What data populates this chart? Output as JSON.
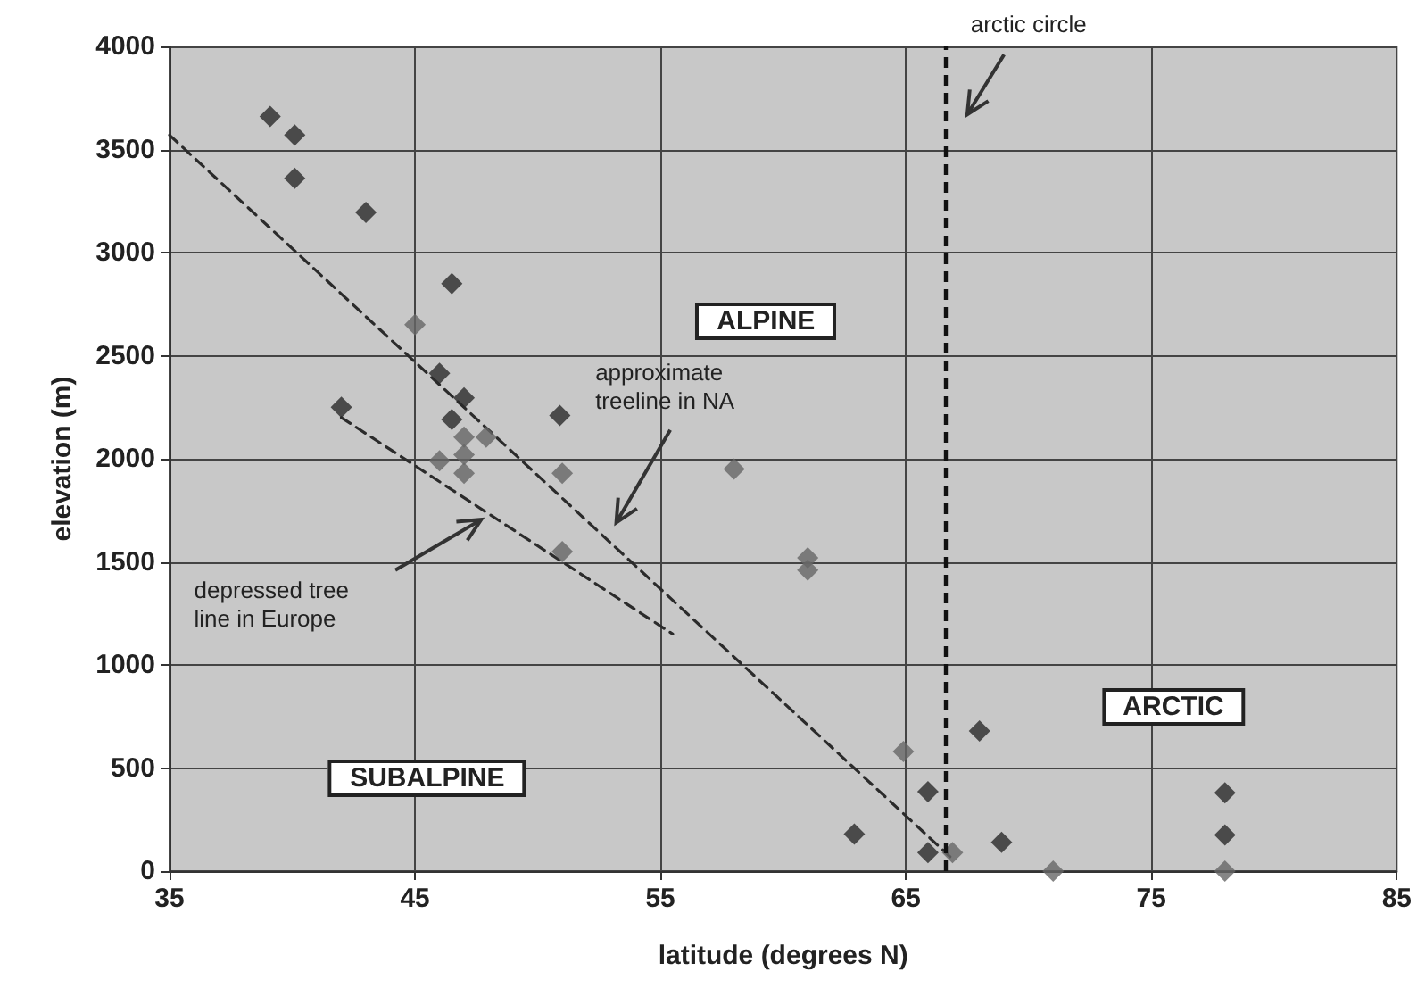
{
  "chart_data": {
    "type": "scatter",
    "xlabel": "latitude (degrees N)",
    "ylabel": "elevation (m)",
    "xlim": [
      35,
      85
    ],
    "xticks": [
      35,
      45,
      55,
      65,
      75,
      85
    ],
    "ylim": [
      0,
      4000
    ],
    "yticks": [
      0,
      500,
      1000,
      1500,
      2000,
      2500,
      3000,
      3500,
      4000
    ],
    "grid": true,
    "marker": "diamond",
    "series": [
      {
        "color": "#2b2b2b",
        "x": [
          39.1,
          40.1,
          40.1,
          43.0,
          46.5,
          46.0,
          47.0,
          46.5,
          42.0,
          50.9,
          68.0,
          65.9,
          62.9,
          65.9,
          68.9,
          78.0,
          78.0
        ],
        "values": [
          3660,
          3570,
          3360,
          3195,
          2850,
          2415,
          2295,
          2190,
          2250,
          2210,
          680,
          385,
          180,
          90,
          140,
          380,
          175
        ]
      },
      {
        "color": "#666666",
        "x": [
          45.0,
          47.0,
          47.9,
          47.0,
          46.0,
          47.0,
          51.0,
          58.0,
          51.0,
          61.0,
          61.0,
          64.9,
          66.9,
          71.0,
          78.0
        ],
        "values": [
          2650,
          2105,
          2105,
          2020,
          1990,
          1930,
          1930,
          1950,
          1550,
          1520,
          1460,
          580,
          90,
          0,
          0
        ]
      },
      {
        "type": "line",
        "line_style": "dashed",
        "marker": "none",
        "color": "#2b2b2b",
        "x": [
          35,
          66.8
        ],
        "values": [
          3570,
          70
        ]
      },
      {
        "type": "line",
        "line_style": "dashed",
        "marker": "none",
        "color": "#2b2b2b",
        "x": [
          42.0,
          55.5
        ],
        "values": [
          2200,
          1150
        ]
      }
    ],
    "ref_lines": [
      {
        "axis": "x",
        "value": 66.6,
        "label": "arctic circle",
        "color": "#111111",
        "line_style": "dashed"
      }
    ],
    "annotations": [
      "ALPINE",
      "SUBALPINE",
      "ARCTIC",
      "approximate treeline in NA",
      "depressed tree line in Europe"
    ]
  }
}
